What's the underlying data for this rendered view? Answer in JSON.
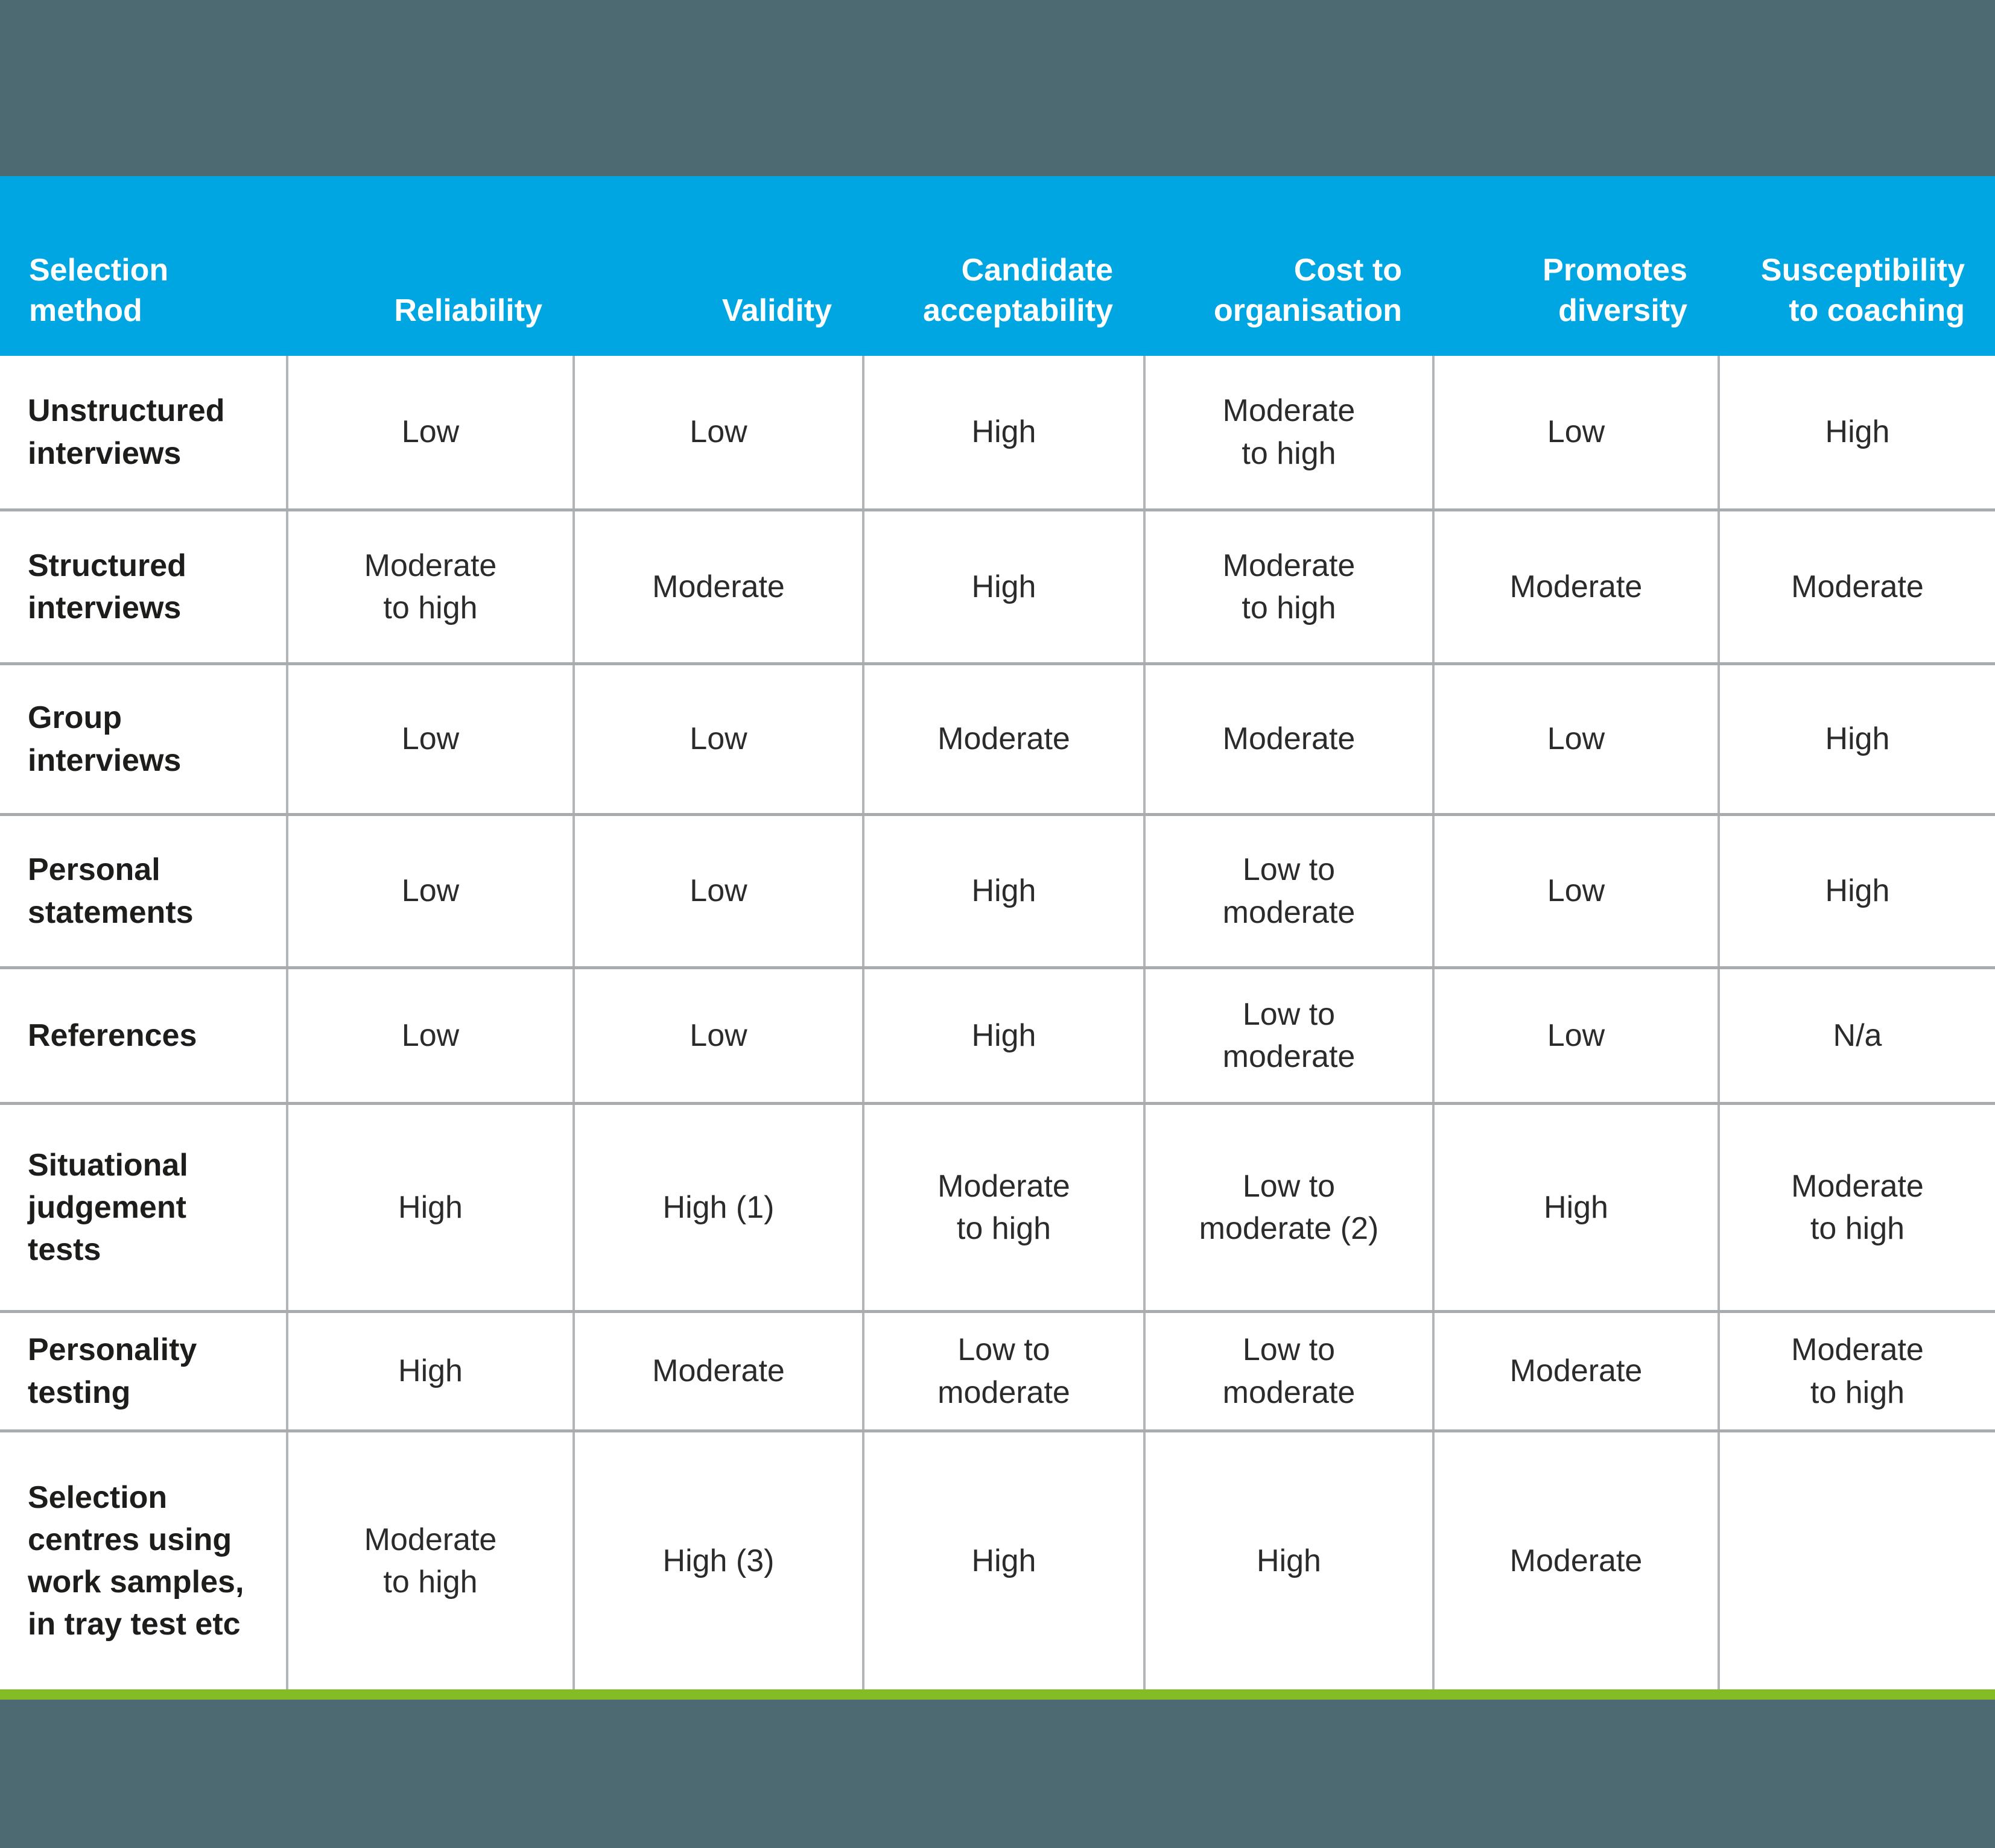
{
  "colors": {
    "band_background": "#4d6a73",
    "header_background": "#00a6e2",
    "header_text": "#ffffff",
    "body_background": "#ffffff",
    "gridline": "#a9acae",
    "accent_bar": "#84bc26",
    "body_text": "#2b2b2b"
  },
  "chart_data": {
    "type": "table",
    "title": "",
    "columns": [
      "Selection method",
      "Reliability",
      "Validity",
      "Candidate acceptability",
      "Cost to organisation",
      "Promotes diversity",
      "Susceptibility to coaching"
    ],
    "rows": [
      [
        "Unstructured interviews",
        "Low",
        "Low",
        "High",
        "Moderate to high",
        "Low",
        "High"
      ],
      [
        "Structured interviews",
        "Moderate to high",
        "Moderate",
        "High",
        "Moderate to high",
        "Moderate",
        "Moderate"
      ],
      [
        "Group interviews",
        "Low",
        "Low",
        "Moderate",
        "Moderate",
        "Low",
        "High"
      ],
      [
        "Personal statements",
        "Low",
        "Low",
        "High",
        "Low to moderate",
        "Low",
        "High"
      ],
      [
        "References",
        "Low",
        "Low",
        "High",
        "Low to moderate",
        "Low",
        "N/a"
      ],
      [
        "Situational judgement tests",
        "High",
        "High (1)",
        "Moderate to high",
        "Low to moderate (2)",
        "High",
        "Moderate to high"
      ],
      [
        "Personality testing",
        "High",
        "Moderate",
        "Low to moderate",
        "Low to moderate",
        "Moderate",
        "Moderate to high"
      ],
      [
        "Selection centres using work samples, in tray test etc",
        "Moderate to high",
        "High (3)",
        "High",
        "High",
        "Moderate",
        ""
      ]
    ]
  },
  "table": {
    "headers": [
      "Selection\nmethod",
      "Reliability",
      "Validity",
      "Candidate\nacceptability",
      "Cost to\norganisation",
      "Promotes\ndiversity",
      "Susceptibility\nto coaching"
    ],
    "rows": [
      {
        "method": "Unstructured\ninterviews",
        "values": [
          "Low",
          "Low",
          "High",
          "Moderate\nto high",
          "Low",
          "High"
        ]
      },
      {
        "method": "Structured\ninterviews",
        "values": [
          "Moderate\nto high",
          "Moderate",
          "High",
          "Moderate\nto high",
          "Moderate",
          "Moderate"
        ]
      },
      {
        "method": "Group\ninterviews",
        "values": [
          "Low",
          "Low",
          "Moderate",
          "Moderate",
          "Low",
          "High"
        ]
      },
      {
        "method": "Personal\nstatements",
        "values": [
          "Low",
          "Low",
          "High",
          "Low to\nmoderate",
          "Low",
          "High"
        ]
      },
      {
        "method": "References",
        "values": [
          "Low",
          "Low",
          "High",
          "Low to\nmoderate",
          "Low",
          "N/a"
        ]
      },
      {
        "method": "Situational\njudgement\ntests",
        "values": [
          "High",
          "High (1)",
          "Moderate\nto high",
          "Low to\nmoderate (2)",
          "High",
          "Moderate\nto high"
        ]
      },
      {
        "method": "Personality\ntesting",
        "values": [
          "High",
          "Moderate",
          "Low to\nmoderate",
          "Low to\nmoderate",
          "Moderate",
          "Moderate\nto high"
        ]
      },
      {
        "method": "Selection\ncentres using\nwork samples,\nin tray test etc",
        "values": [
          "Moderate\nto high",
          "High (3)",
          "High",
          "High",
          "Moderate",
          ""
        ]
      }
    ]
  }
}
